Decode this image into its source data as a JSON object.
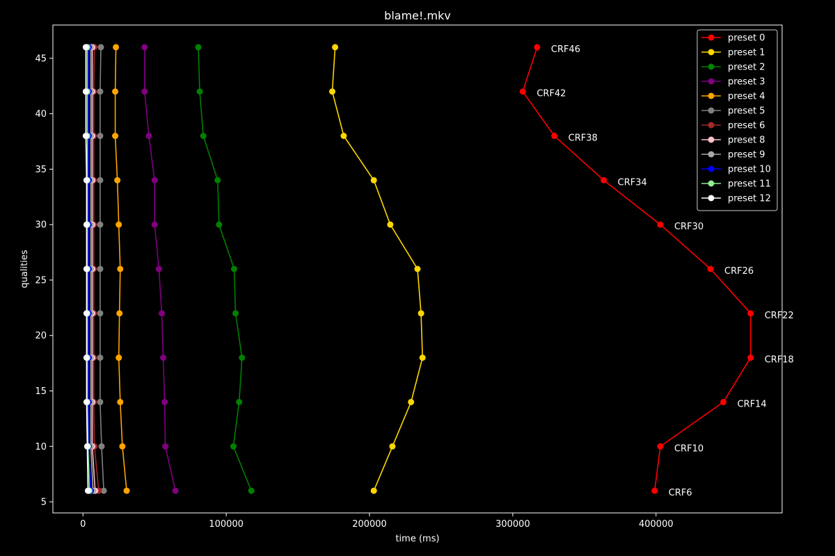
{
  "chart_data": {
    "type": "line",
    "title": "blame!.mkv",
    "xlabel": "time (ms)",
    "ylabel": "qualities",
    "xlim": [
      -21000,
      488000
    ],
    "ylim": [
      4,
      48
    ],
    "xticks": [
      0,
      100000,
      200000,
      300000,
      400000
    ],
    "yticks": [
      5,
      10,
      15,
      20,
      25,
      30,
      35,
      40,
      45
    ],
    "legend_position": "top-right",
    "grid": false,
    "qualities": [
      46,
      42,
      38,
      34,
      30,
      26,
      22,
      18,
      14,
      10,
      6
    ],
    "crf_labels": [
      "CRF46",
      "CRF42",
      "CRF38",
      "CRF34",
      "CRF30",
      "CRF26",
      "CRF22",
      "CRF18",
      "CRF14",
      "CRF10",
      "CRF6"
    ],
    "series": [
      {
        "name": "preset 0",
        "color": "#ff0000",
        "times": [
          317000,
          307000,
          329000,
          363500,
          403000,
          438000,
          466000,
          466000,
          447000,
          403000,
          399000
        ]
      },
      {
        "name": "preset 1",
        "color": "#ffd700",
        "times": [
          176000,
          174000,
          182000,
          203000,
          214500,
          233500,
          236000,
          237000,
          229000,
          216000,
          203000
        ]
      },
      {
        "name": "preset 2",
        "color": "#008000",
        "times": [
          80500,
          81500,
          84000,
          94000,
          95000,
          105500,
          106500,
          111000,
          109000,
          105000,
          117500
        ]
      },
      {
        "name": "preset 3",
        "color": "#800080",
        "times": [
          43000,
          43000,
          46000,
          50000,
          50000,
          53000,
          55000,
          56000,
          57000,
          57500,
          64500
        ]
      },
      {
        "name": "preset 4",
        "color": "#ffa500",
        "times": [
          23000,
          22500,
          22500,
          24000,
          25000,
          26000,
          25500,
          25000,
          26000,
          27500,
          30500
        ]
      },
      {
        "name": "preset 5",
        "color": "#808080",
        "times": [
          12500,
          12000,
          12000,
          12000,
          12000,
          12000,
          12000,
          12000,
          12000,
          13000,
          14500
        ]
      },
      {
        "name": "preset 6",
        "color": "#a52a2a",
        "times": [
          8000,
          7500,
          7500,
          7500,
          7500,
          7500,
          7500,
          7500,
          7500,
          8000,
          11000
        ]
      },
      {
        "name": "preset 8",
        "color": "#ffc0cb",
        "times": [
          6500,
          6500,
          6500,
          6500,
          6500,
          6500,
          6500,
          6500,
          6500,
          6500,
          8500
        ]
      },
      {
        "name": "preset 9",
        "color": "#a9a9a9",
        "times": [
          5500,
          5500,
          5500,
          5500,
          5500,
          5500,
          5500,
          5500,
          5500,
          5500,
          7000
        ]
      },
      {
        "name": "preset 10",
        "color": "#0000ff",
        "times": [
          4000,
          4000,
          4000,
          4000,
          4000,
          4000,
          4000,
          4000,
          4000,
          4000,
          5500
        ]
      },
      {
        "name": "preset 11",
        "color": "#90ee90",
        "times": [
          3000,
          3000,
          3000,
          3000,
          3000,
          3000,
          3000,
          3000,
          3000,
          3500,
          4500
        ]
      },
      {
        "name": "preset 12",
        "color": "#ffffff",
        "times": [
          2000,
          2000,
          2000,
          2500,
          2500,
          2500,
          2500,
          2500,
          2500,
          3000,
          3500
        ]
      }
    ]
  }
}
